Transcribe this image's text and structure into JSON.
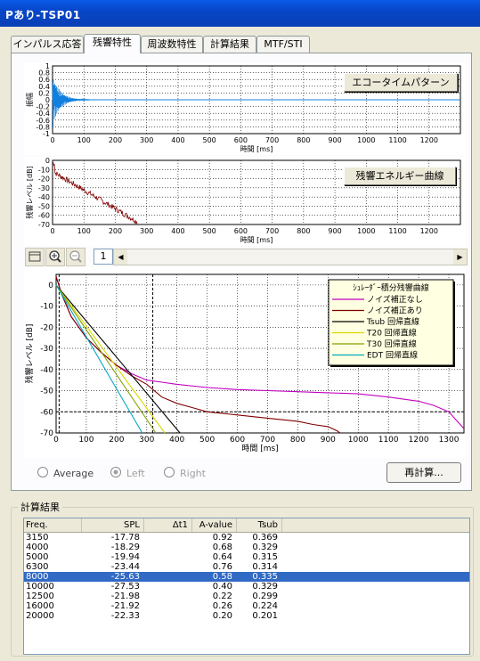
{
  "window": {
    "title": "Pあり-TSP01"
  },
  "tabs": [
    {
      "label": "インパルス応答"
    },
    {
      "label": "残響特性"
    },
    {
      "label": "周波数特性"
    },
    {
      "label": "計算結果"
    },
    {
      "label": "MTF/STI"
    }
  ],
  "plot1": {
    "button": "エコータイムパターン",
    "ylabel": "振幅",
    "xlabel": "時間 [ms]",
    "yticks": [
      "1",
      "0.8",
      "0.6",
      "0.4",
      "0.2",
      "0",
      "-0.2",
      "-0.4",
      "-0.6",
      "-0.8",
      "-1"
    ],
    "xticks": [
      "0",
      "100",
      "200",
      "300",
      "400",
      "500",
      "600",
      "700",
      "800",
      "900",
      "1000",
      "1100",
      "1200"
    ]
  },
  "plot2": {
    "button": "残響エネルギー曲線",
    "ylabel": "残響レベル [dB]",
    "xlabel": "時間 [ms]",
    "yticks": [
      "0",
      "-10",
      "-20",
      "-30",
      "-40",
      "-50",
      "-60",
      "-70"
    ],
    "xticks": [
      "0",
      "100",
      "200",
      "300",
      "400",
      "500",
      "600",
      "700",
      "800",
      "900",
      "1000",
      "1100",
      "1200"
    ]
  },
  "toolbar": {
    "page": "1"
  },
  "plot3": {
    "ylabel": "残響レベル [dB]",
    "xlabel": "時間 [ms]",
    "yticks": [
      "0",
      "-10",
      "-20",
      "-30",
      "-40",
      "-50",
      "-60",
      "-70"
    ],
    "xticks": [
      "0",
      "100",
      "200",
      "300",
      "400",
      "500",
      "600",
      "700",
      "800",
      "900",
      "1000",
      "1100",
      "1200",
      "1300"
    ]
  },
  "legend": {
    "title": "ｼｭﾚｰﾀﾞｰ積分残響曲線",
    "items": [
      {
        "label": "ノイズ補正なし",
        "color": "#c000c0"
      },
      {
        "label": "ノイズ補正あり",
        "color": "#800000"
      },
      {
        "label": "Tsub 回帰直線",
        "color": "#000000"
      },
      {
        "label": "T20 回帰直線",
        "color": "#d8d800"
      },
      {
        "label": "T30 回帰直線",
        "color": "#80a000"
      },
      {
        "label": "EDT 回帰直線",
        "color": "#00a8c0"
      }
    ]
  },
  "options": {
    "average": "Average",
    "left": "Left",
    "right": "Right",
    "recalc": "再計算..."
  },
  "results": {
    "title": "計算結果",
    "columns": [
      "Freq.",
      "SPL",
      "Δt1",
      "A-value",
      "Tsub"
    ],
    "rows": [
      [
        "3150",
        "-17.78",
        "",
        "0.92",
        "0.369"
      ],
      [
        "4000",
        "-18.29",
        "",
        "0.68",
        "0.329"
      ],
      [
        "5000",
        "-19.94",
        "",
        "0.64",
        "0.315"
      ],
      [
        "6300",
        "-23.44",
        "",
        "0.76",
        "0.314"
      ],
      [
        "8000",
        "-25.63",
        "",
        "0.58",
        "0.335"
      ],
      [
        "10000",
        "-27.53",
        "",
        "0.40",
        "0.329"
      ],
      [
        "12500",
        "-21.98",
        "",
        "0.22",
        "0.299"
      ],
      [
        "16000",
        "-21.92",
        "",
        "0.26",
        "0.224"
      ],
      [
        "20000",
        "-22.33",
        "",
        "0.20",
        "0.201"
      ]
    ],
    "selected_row": 4
  },
  "chart_data": [
    {
      "type": "line",
      "title": "エコータイムパターン",
      "xlabel": "時間 [ms]",
      "ylabel": "振幅",
      "xlim": [
        0,
        1300
      ],
      "ylim": [
        -1,
        1
      ]
    },
    {
      "type": "line",
      "title": "残響エネルギー曲線",
      "xlabel": "時間 [ms]",
      "ylabel": "残響レベル [dB]",
      "xlim": [
        0,
        1300
      ],
      "ylim": [
        -70,
        0
      ]
    },
    {
      "type": "line",
      "title": "ｼｭﾚｰﾀﾞｰ積分残響曲線",
      "xlabel": "時間 [ms]",
      "ylabel": "残響レベル [dB]",
      "xlim": [
        0,
        1350
      ],
      "ylim": [
        -70,
        5
      ],
      "series": [
        {
          "name": "ノイズ補正なし",
          "x": [
            0,
            20,
            50,
            100,
            150,
            200,
            250,
            300,
            350,
            400,
            500,
            600,
            700,
            800,
            900,
            1000,
            1100,
            1200,
            1250,
            1300,
            1350
          ],
          "y": [
            4,
            -5,
            -15,
            -25,
            -32,
            -38,
            -42,
            -45,
            -46,
            -47,
            -48.5,
            -49.5,
            -50,
            -50.5,
            -51,
            -51.5,
            -53,
            -55,
            -57,
            -60,
            -68
          ]
        },
        {
          "name": "ノイズ補正あり",
          "x": [
            0,
            20,
            50,
            100,
            150,
            200,
            250,
            300,
            350,
            400,
            450,
            500,
            600,
            700,
            800,
            850,
            900,
            930,
            940
          ],
          "y": [
            4,
            -5,
            -15,
            -25,
            -32,
            -38,
            -43,
            -47,
            -53,
            -56,
            -58,
            -60,
            -61.5,
            -63,
            -64.5,
            -66,
            -67,
            -69,
            -70
          ]
        },
        {
          "name": "Tsub 回帰直線",
          "x": [
            0,
            410
          ],
          "y": [
            0,
            -70
          ]
        },
        {
          "name": "T20 回帰直線",
          "x": [
            0,
            360
          ],
          "y": [
            0,
            -70
          ]
        },
        {
          "name": "T30 回帰直線",
          "x": [
            0,
            330
          ],
          "y": [
            0,
            -70
          ]
        },
        {
          "name": "EDT 回帰直線",
          "x": [
            0,
            285
          ],
          "y": [
            0,
            -70
          ]
        }
      ],
      "markers": {
        "vertical": [
          10,
          320
        ],
        "horizontal": [
          -60
        ]
      }
    }
  ]
}
